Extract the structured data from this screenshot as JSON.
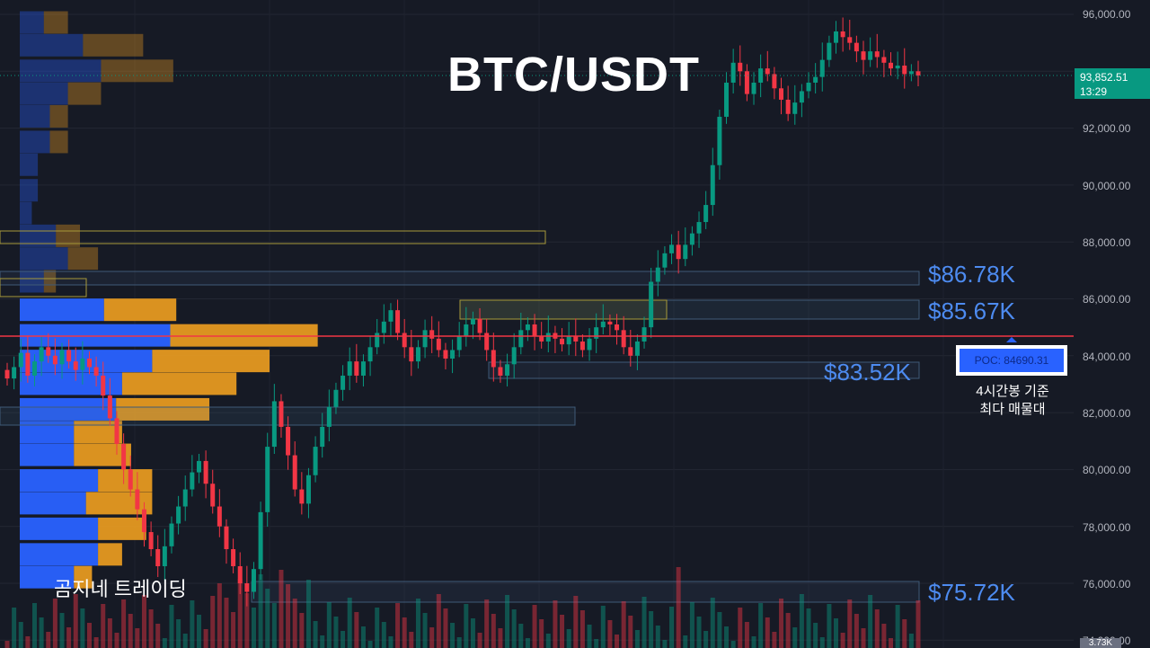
{
  "title": "BTC/USDT",
  "watermark": "곰지네 트레이딩",
  "price_tag": {
    "price": "93,852.51",
    "countdown": "13:29"
  },
  "poc": {
    "label": "POC: 84690.31",
    "note_line1": "4시간봉 기준",
    "note_line2": "최다 매물대",
    "value": 84690.31
  },
  "levels": [
    {
      "label": "$86.78K",
      "value": 86780
    },
    {
      "label": "$85.67K",
      "value": 85670
    },
    {
      "label": "$83.52K",
      "value": 83520
    },
    {
      "label": "$75.72K",
      "value": 75720
    }
  ],
  "bottom_tag": "3.73K",
  "colors": {
    "background": "#161a25",
    "up": "#089981",
    "down": "#f23645",
    "poc_line": "#f23645",
    "level_text": "#4d8bf0",
    "profile_up": "#2962ff",
    "profile_down": "#f0a020"
  },
  "chart_data": {
    "type": "candlestick",
    "title": "BTC/USDT",
    "ylim": [
      74000,
      96000
    ],
    "y_ticks": [
      "96,000.00",
      "94,000.00",
      "92,000.00",
      "90,000.00",
      "88,000.00",
      "86,000.00",
      "84,000.00",
      "82,000.00",
      "80,000.00",
      "78,000.00",
      "76,000.00",
      "74,000.00"
    ],
    "y_tick_values": [
      96000,
      94000,
      92000,
      90000,
      88000,
      86000,
      84000,
      82000,
      80000,
      78000,
      76000,
      74000
    ],
    "last_price": 93852.51,
    "poc": 84690.31,
    "closes": [
      83200,
      83600,
      84100,
      83300,
      83800,
      84300,
      84000,
      83700,
      84200,
      83800,
      83500,
      83900,
      83600,
      83300,
      82600,
      81800,
      80900,
      80000,
      79300,
      78600,
      77800,
      77200,
      76600,
      77300,
      78100,
      78700,
      79300,
      79900,
      80300,
      79500,
      78700,
      78000,
      77200,
      76600,
      76000,
      75700,
      76500,
      78500,
      80800,
      82400,
      81500,
      80500,
      79300,
      78800,
      79800,
      80800,
      81500,
      82200,
      82800,
      83300,
      83800,
      83300,
      83800,
      84300,
      84800,
      85200,
      85600,
      84800,
      84300,
      83800,
      84300,
      84900,
      84600,
      84200,
      83900,
      84200,
      84700,
      85100,
      85300,
      84800,
      84200,
      83600,
      83300,
      83700,
      84300,
      84900,
      85100,
      84700,
      84500,
      84800,
      84600,
      84400,
      84700,
      84500,
      84200,
      84600,
      85000,
      85200,
      85100,
      84900,
      84300,
      84000,
      84500,
      85000,
      86600,
      87100,
      87600,
      87900,
      87400,
      87900,
      88300,
      88700,
      89300,
      90700,
      92400,
      93600,
      94300,
      94000,
      93200,
      93600,
      94100,
      93900,
      93400,
      93000,
      92500,
      92900,
      93300,
      93600,
      93800,
      94400,
      95000,
      95400,
      95200,
      95000,
      94700,
      94400,
      94700,
      94500,
      94300,
      94100,
      94200,
      93900,
      94000,
      93852.51
    ],
    "volume_profile": [
      {
        "price": 95700,
        "up": 0.8,
        "down": 0.8
      },
      {
        "price": 94900,
        "up": 2.1,
        "down": 2.0
      },
      {
        "price": 94000,
        "up": 2.7,
        "down": 2.4
      },
      {
        "price": 93200,
        "up": 1.6,
        "down": 1.1
      },
      {
        "price": 92400,
        "up": 1.0,
        "down": 0.6
      },
      {
        "price": 91500,
        "up": 1.0,
        "down": 0.6
      },
      {
        "price": 90700,
        "up": 0.6,
        "down": 0
      },
      {
        "price": 89800,
        "up": 0.6,
        "down": 0
      },
      {
        "price": 89000,
        "up": 0.4,
        "down": 0
      },
      {
        "price": 88200,
        "up": 1.2,
        "down": 0.8
      },
      {
        "price": 87400,
        "up": 1.6,
        "down": 1.0
      },
      {
        "price": 86600,
        "up": 0.8,
        "down": 0.4
      },
      {
        "price": 85600,
        "up": 2.8,
        "down": 2.4
      },
      {
        "price": 84700,
        "up": 5.0,
        "down": 4.9
      },
      {
        "price": 83800,
        "up": 4.4,
        "down": 3.9
      },
      {
        "price": 83000,
        "up": 3.4,
        "down": 3.8
      },
      {
        "price": 82100,
        "up": 3.2,
        "down": 3.1
      },
      {
        "price": 81300,
        "up": 1.8,
        "down": 1.6
      },
      {
        "price": 80500,
        "up": 1.8,
        "down": 1.9
      },
      {
        "price": 79600,
        "up": 2.6,
        "down": 1.8
      },
      {
        "price": 78800,
        "up": 2.2,
        "down": 2.2
      },
      {
        "price": 77900,
        "up": 2.6,
        "down": 1.6
      },
      {
        "price": 77000,
        "up": 2.6,
        "down": 0.8
      },
      {
        "price": 76200,
        "up": 1.8,
        "down": 0.6
      }
    ]
  }
}
